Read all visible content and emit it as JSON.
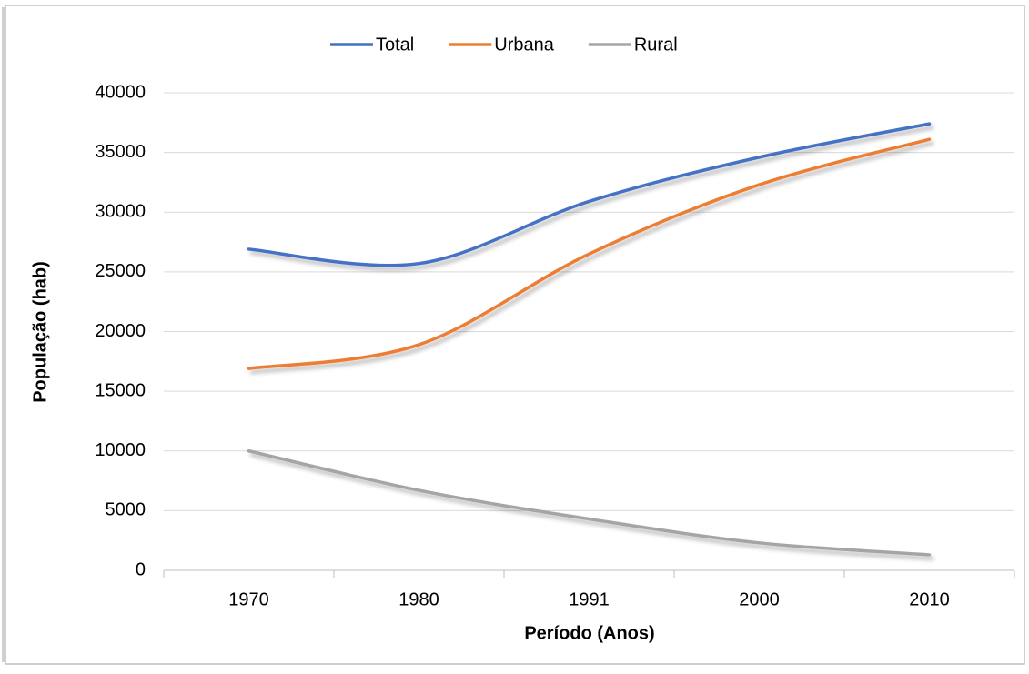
{
  "chart_data": {
    "type": "line",
    "categories": [
      "1970",
      "1980",
      "1991",
      "2000",
      "2010"
    ],
    "series": [
      {
        "name": "Total",
        "color": "#4472c4",
        "values": [
          26900,
          25700,
          30900,
          34600,
          37400
        ]
      },
      {
        "name": "Urbana",
        "color": "#ed7d31",
        "values": [
          16900,
          18900,
          26500,
          32300,
          36100
        ]
      },
      {
        "name": "Rural",
        "color": "#a5a5a5",
        "values": [
          10000,
          6700,
          4300,
          2300,
          1300
        ]
      }
    ],
    "ylim": [
      0,
      40000
    ],
    "yticks": [
      0,
      5000,
      10000,
      15000,
      20000,
      25000,
      30000,
      35000,
      40000
    ],
    "xlabel": "Período (Anos)",
    "ylabel": "População (hab)",
    "grid": true,
    "legend": "top",
    "smooth": true
  }
}
